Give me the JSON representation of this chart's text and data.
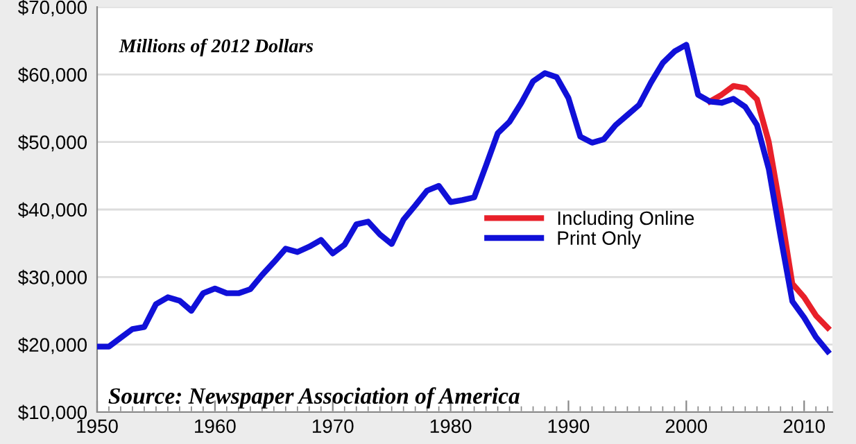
{
  "chart_data": {
    "type": "line",
    "annotations": [
      "Millions of 2012 Dollars",
      "Source: Newspaper Association of America"
    ],
    "series": [
      {
        "name": "Including Online",
        "color": "#e8202a",
        "x": [
          2002,
          2003,
          2004,
          2005,
          2006,
          2007,
          2008,
          2009,
          2010,
          2011,
          2012
        ],
        "values": [
          56000,
          57000,
          58300,
          58000,
          56300,
          50000,
          40000,
          29000,
          27000,
          24300,
          22500
        ]
      },
      {
        "name": "Print Only",
        "color": "#1010d8",
        "x": [
          1950,
          1951,
          1952,
          1953,
          1954,
          1955,
          1956,
          1957,
          1958,
          1959,
          1960,
          1961,
          1962,
          1963,
          1964,
          1965,
          1966,
          1967,
          1968,
          1969,
          1970,
          1971,
          1972,
          1973,
          1974,
          1975,
          1976,
          1977,
          1978,
          1979,
          1980,
          1981,
          1982,
          1983,
          1984,
          1985,
          1986,
          1987,
          1988,
          1989,
          1990,
          1991,
          1992,
          1993,
          1994,
          1995,
          1996,
          1997,
          1998,
          1999,
          2000,
          2001,
          2002,
          2003,
          2004,
          2005,
          2006,
          2007,
          2008,
          2009,
          2010,
          2011,
          2012
        ],
        "values": [
          19700,
          19700,
          21000,
          22300,
          22600,
          26000,
          27000,
          26500,
          25000,
          27600,
          28300,
          27600,
          27600,
          28200,
          30300,
          32200,
          34200,
          33700,
          34500,
          35500,
          33500,
          34800,
          37800,
          38200,
          36300,
          34900,
          38500,
          40600,
          42800,
          43500,
          41100,
          41400,
          41800,
          46500,
          51300,
          53000,
          55800,
          59000,
          60200,
          59600,
          56500,
          50800,
          49900,
          50400,
          52500,
          54000,
          55500,
          58800,
          61700,
          63400,
          64400,
          57000,
          56000,
          55800,
          56400,
          55200,
          52500,
          46000,
          36000,
          26400,
          24000,
          21100,
          19000
        ]
      }
    ],
    "xlim": [
      1950,
      2012.4
    ],
    "xticks": [
      1950,
      1960,
      1970,
      1980,
      1990,
      2000,
      2010
    ],
    "ylim": [
      10000,
      70000
    ],
    "yticks": [
      {
        "value": 10000,
        "label": "$10,000"
      },
      {
        "value": 20000,
        "label": "$20,000"
      },
      {
        "value": 30000,
        "label": "$30,000"
      },
      {
        "value": 40000,
        "label": "$40,000"
      },
      {
        "value": 50000,
        "label": "$50,000"
      },
      {
        "value": 60000,
        "label": "$60,000"
      },
      {
        "value": 70000,
        "label": "$70,000"
      }
    ],
    "grid": "y",
    "legend": "center",
    "marker": "none",
    "line_style": "solid"
  }
}
